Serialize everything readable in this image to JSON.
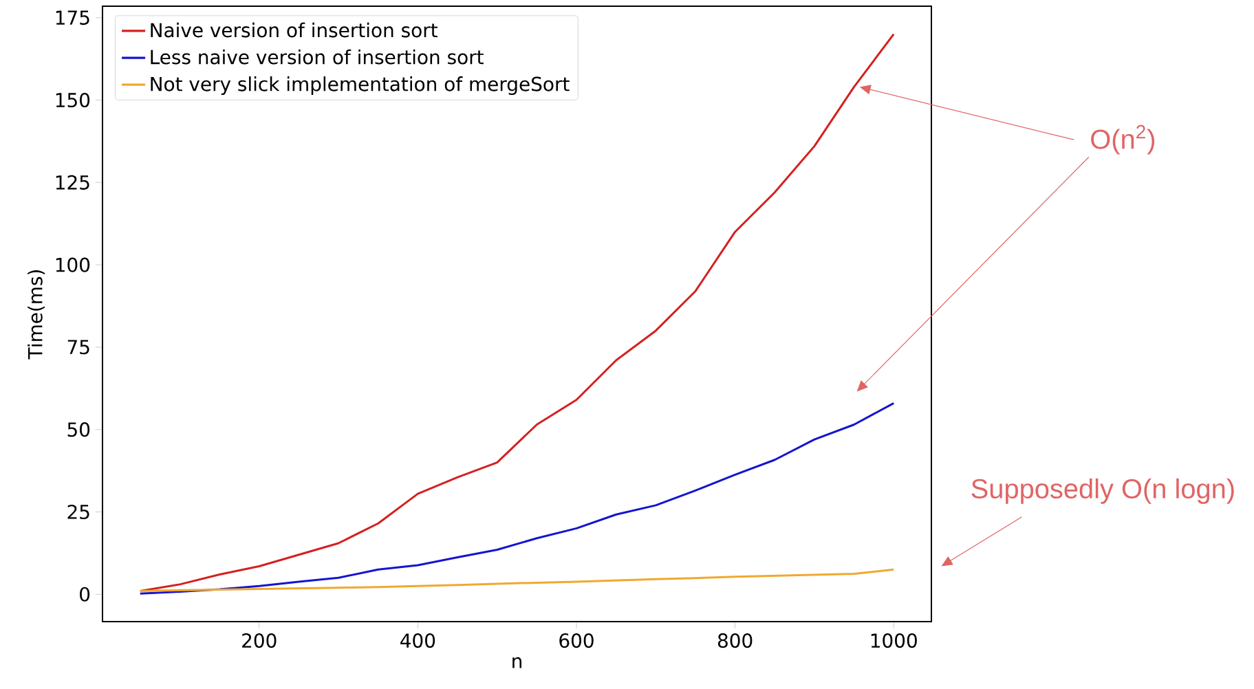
{
  "chart_data": {
    "type": "line",
    "xlabel": "n",
    "ylabel": "Time(ms)",
    "x": [
      50,
      100,
      150,
      200,
      250,
      300,
      350,
      400,
      450,
      500,
      550,
      600,
      650,
      700,
      750,
      800,
      850,
      900,
      950,
      1000
    ],
    "series": [
      {
        "name": "Naive version of insertion sort",
        "color": "#d42020",
        "values": [
          1,
          3,
          6,
          8.5,
          12,
          15.5,
          21.5,
          30.5,
          35.5,
          40,
          51.5,
          59,
          71,
          80,
          92,
          110,
          122,
          136,
          154,
          170
        ]
      },
      {
        "name": "Less naive version of insertion sort",
        "color": "#1414d0",
        "values": [
          0.2,
          0.8,
          1.5,
          2.5,
          3.8,
          5,
          7.5,
          8.8,
          11.2,
          13.5,
          17,
          20,
          24.2,
          27,
          31.5,
          36.3,
          40.8,
          47,
          51.5,
          58
        ]
      },
      {
        "name": "Not very slick implementation of mergeSort",
        "color": "#f0a830",
        "values": [
          1,
          1.2,
          1.4,
          1.6,
          1.8,
          2,
          2.2,
          2.5,
          2.8,
          3.2,
          3.5,
          3.8,
          4.2,
          4.6,
          4.9,
          5.3,
          5.6,
          5.9,
          6.2,
          7.5
        ]
      }
    ],
    "xlim": [
      2.5,
      1047.5
    ],
    "ylim": [
      -8.3,
      178.5
    ],
    "xticks": [
      200,
      400,
      600,
      800,
      1000
    ],
    "yticks": [
      0,
      25,
      50,
      75,
      100,
      125,
      150,
      175
    ],
    "legend": "top left",
    "grid": false,
    "marker": "none",
    "line_style": "solid",
    "annotations": [
      "O(n$^{2}$)",
      "Supposedly O(n logn)"
    ]
  }
}
